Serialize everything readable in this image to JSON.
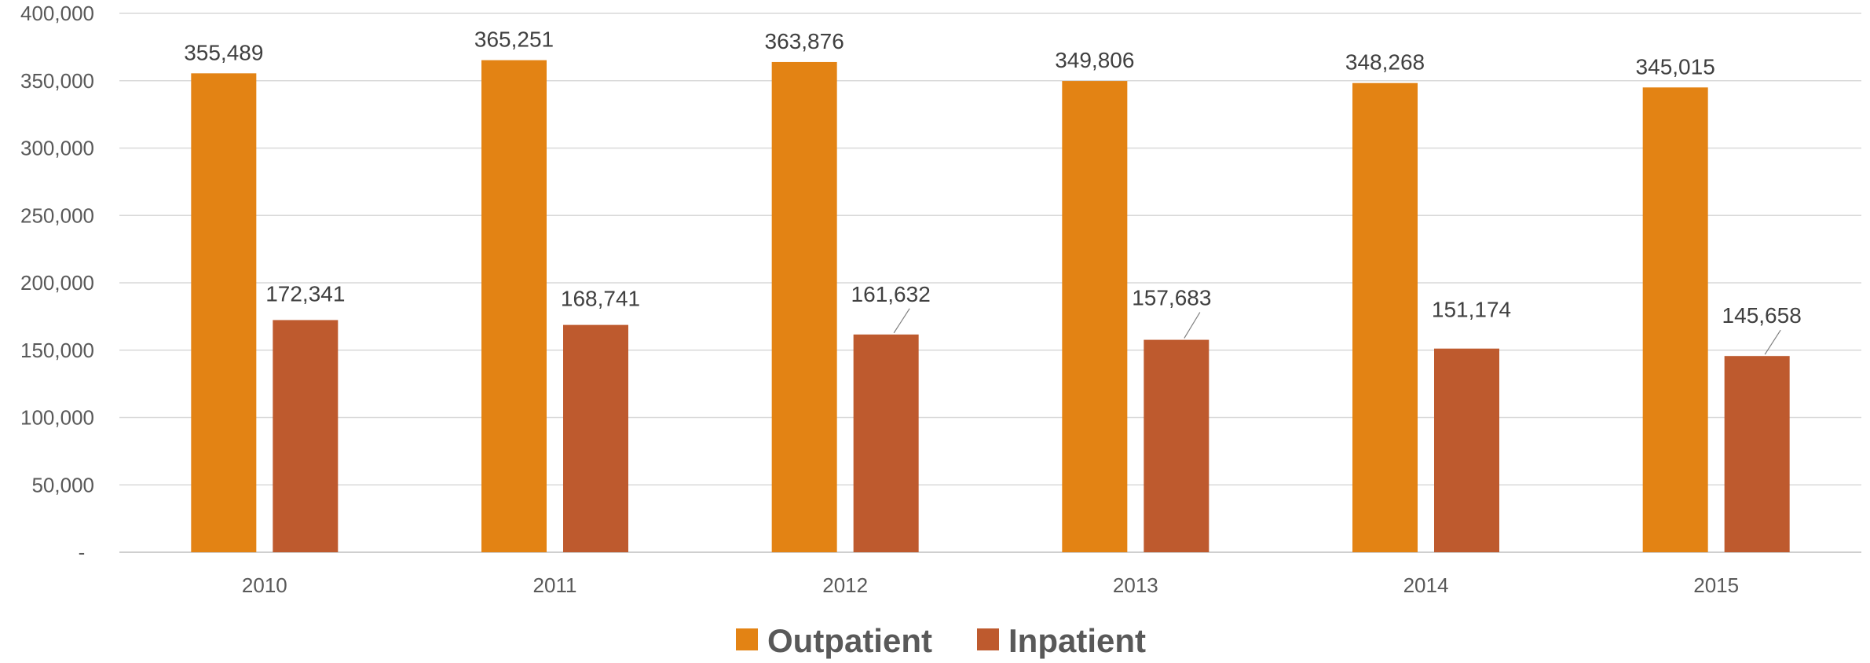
{
  "chart_data": {
    "type": "bar",
    "categories": [
      "2010",
      "2011",
      "2012",
      "2013",
      "2014",
      "2015"
    ],
    "series": [
      {
        "name": "Outpatient",
        "color": "#E38314",
        "values": [
          355489,
          365251,
          363876,
          349806,
          348268,
          345015
        ],
        "labels": [
          "355,489",
          "365,251",
          "363,876",
          "349,806",
          "348,268",
          "345,015"
        ]
      },
      {
        "name": "Inpatient",
        "color": "#BE5A2E",
        "values": [
          172341,
          168741,
          161632,
          157683,
          151174,
          145658
        ],
        "labels": [
          "172,341",
          "168,741",
          "161,632",
          "157,683",
          "151,174",
          "145,658"
        ]
      }
    ],
    "y_ticks": [
      0,
      50000,
      100000,
      150000,
      200000,
      250000,
      300000,
      350000,
      400000
    ],
    "y_tick_labels": [
      "-",
      "50,000",
      "100,000",
      "150,000",
      "200,000",
      "250,000",
      "300,000",
      "350,000",
      "400,000"
    ],
    "ylim": [
      0,
      400000
    ],
    "grid": true,
    "legend_position": "bottom"
  }
}
